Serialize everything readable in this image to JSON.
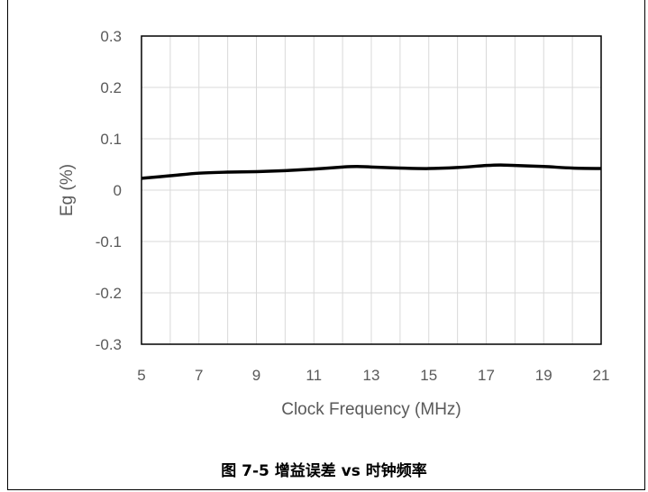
{
  "caption": "图 7-5 增益误差 vs 时钟频率",
  "chart_data": {
    "type": "line",
    "title": "",
    "xlabel": "Clock Frequency (MHz)",
    "ylabel": "Eg (%)",
    "xlim": [
      5,
      21
    ],
    "ylim": [
      -0.3,
      0.3
    ],
    "x_ticks": [
      5,
      7,
      9,
      11,
      13,
      15,
      17,
      19,
      21
    ],
    "x_tick_labels": [
      "5",
      "7",
      "9",
      "11",
      "13",
      "15",
      "17",
      "19",
      "21"
    ],
    "y_ticks": [
      0.3,
      0.2,
      0.1,
      0,
      -0.1,
      -0.2,
      -0.3
    ],
    "y_tick_labels": [
      "0.3",
      "0.2",
      "0.1",
      "0",
      "-0.1",
      "-0.2",
      "-0.3"
    ],
    "grid": true,
    "x_minor_grid_step": 1,
    "series": [
      {
        "color": "#000000",
        "x": [
          5,
          6,
          7,
          8,
          9,
          10,
          11,
          12,
          12.5,
          13,
          14,
          15,
          16,
          17,
          17.5,
          18,
          19,
          20,
          21
        ],
        "y": [
          0.023,
          0.028,
          0.033,
          0.035,
          0.036,
          0.038,
          0.041,
          0.045,
          0.046,
          0.045,
          0.043,
          0.042,
          0.044,
          0.048,
          0.049,
          0.048,
          0.046,
          0.043,
          0.042
        ]
      }
    ]
  },
  "colors": {
    "grid": "#d9d9d9",
    "axes_frame": "#000000",
    "text": "#595959"
  }
}
